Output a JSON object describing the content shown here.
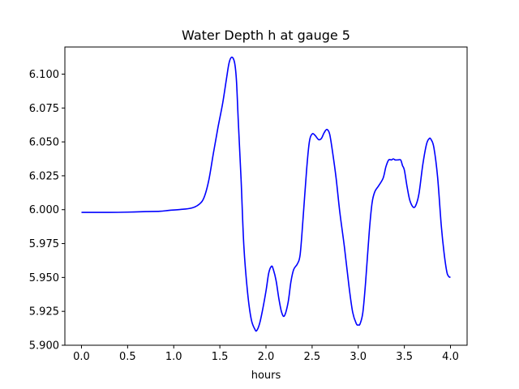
{
  "chart_data": {
    "type": "line",
    "title": "Water Depth h at gauge 5",
    "xlabel": "hours",
    "ylabel": "",
    "xlim": [
      -0.18,
      4.18
    ],
    "ylim": [
      5.9,
      6.12
    ],
    "xticks": [
      0.0,
      0.5,
      1.0,
      1.5,
      2.0,
      2.5,
      3.0,
      3.5,
      4.0
    ],
    "xtick_labels": [
      "0.0",
      "0.5",
      "1.0",
      "1.5",
      "2.0",
      "2.5",
      "3.0",
      "3.5",
      "4.0"
    ],
    "yticks": [
      5.9,
      5.925,
      5.95,
      5.975,
      6.0,
      6.025,
      6.05,
      6.075,
      6.1
    ],
    "ytick_labels": [
      "5.900",
      "5.925",
      "5.950",
      "5.975",
      "6.000",
      "6.025",
      "6.050",
      "6.075",
      "6.100"
    ],
    "grid": false,
    "series": [
      {
        "color": "#0000ff",
        "x": [
          0.0,
          0.3,
          0.5,
          0.7,
          0.85,
          0.95,
          1.1,
          1.2,
          1.28,
          1.33,
          1.38,
          1.43,
          1.48,
          1.53,
          1.57,
          1.6,
          1.63,
          1.66,
          1.68,
          1.7,
          1.73,
          1.76,
          1.8,
          1.84,
          1.88,
          1.9,
          1.93,
          1.96,
          2.0,
          2.03,
          2.06,
          2.08,
          2.11,
          2.14,
          2.17,
          2.2,
          2.24,
          2.27,
          2.3,
          2.34,
          2.37,
          2.4,
          2.44,
          2.47,
          2.5,
          2.53,
          2.57,
          2.6,
          2.63,
          2.66,
          2.69,
          2.72,
          2.76,
          2.8,
          2.85,
          2.9,
          2.94,
          2.98,
          3.0,
          3.02,
          3.05,
          3.08,
          3.12,
          3.15,
          3.18,
          3.22,
          3.27,
          3.3,
          3.33,
          3.36,
          3.38,
          3.4,
          3.43,
          3.46,
          3.48,
          3.5,
          3.53,
          3.56,
          3.6,
          3.63,
          3.66,
          3.7,
          3.74,
          3.77,
          3.79,
          3.82,
          3.86,
          3.9,
          3.93,
          3.96,
          3.98,
          4.0
        ],
        "y": [
          5.998,
          5.998,
          5.9982,
          5.9986,
          5.9988,
          5.9995,
          6.0003,
          6.0013,
          6.0042,
          6.0092,
          6.0217,
          6.0417,
          6.0608,
          6.0783,
          6.0958,
          6.1083,
          6.1125,
          6.1083,
          6.095,
          6.065,
          6.0225,
          5.9733,
          5.9392,
          5.9192,
          5.9117,
          5.9108,
          5.9158,
          5.925,
          5.94,
          5.9533,
          5.9583,
          5.9558,
          5.9475,
          5.9342,
          5.9242,
          5.9217,
          5.9317,
          5.9467,
          5.9558,
          5.96,
          5.9667,
          5.9917,
          6.0292,
          6.05,
          6.0558,
          6.055,
          6.0517,
          6.0525,
          6.0567,
          6.0592,
          6.0558,
          6.0433,
          6.0233,
          5.9983,
          5.9725,
          5.9433,
          5.9242,
          5.9158,
          5.915,
          5.9158,
          5.9242,
          5.9467,
          5.9842,
          6.005,
          6.0133,
          6.0175,
          6.0233,
          6.0317,
          6.0367,
          6.0367,
          6.0375,
          6.0367,
          6.0367,
          6.0367,
          6.0325,
          6.0292,
          6.0167,
          6.0067,
          6.0017,
          6.0042,
          6.0125,
          6.0333,
          6.0483,
          6.0525,
          6.0517,
          6.0458,
          6.0242,
          5.9883,
          5.9683,
          5.9542,
          5.9508,
          5.95
        ]
      }
    ]
  }
}
